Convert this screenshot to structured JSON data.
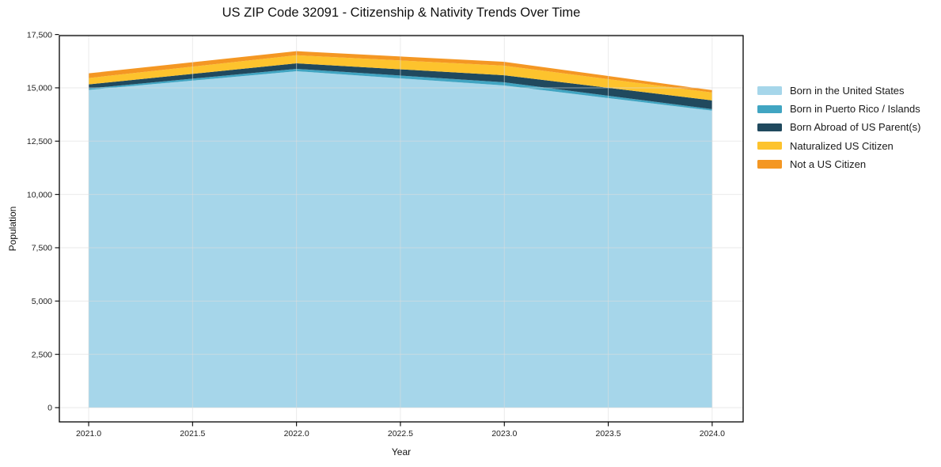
{
  "chart_data": {
    "type": "area",
    "stacked": true,
    "title": "US ZIP Code 32091 - Citizenship & Nativity Trends Over Time",
    "xlabel": "Year",
    "ylabel": "Population",
    "x": [
      2021,
      2022,
      2023,
      2024
    ],
    "series": [
      {
        "name": "Born in the United States",
        "values": [
          14900,
          15780,
          15110,
          13930
        ],
        "color": "#a6d6ea"
      },
      {
        "name": "Born in Puerto Rico / Islands",
        "values": [
          70,
          110,
          150,
          70
        ],
        "color": "#41a5c2"
      },
      {
        "name": "Born Abroad of US Parent(s)",
        "values": [
          190,
          260,
          330,
          410
        ],
        "color": "#20495e"
      },
      {
        "name": "Naturalized US Citizen",
        "values": [
          300,
          380,
          450,
          370
        ],
        "color": "#fdc32d"
      },
      {
        "name": "Not a US Citizen",
        "values": [
          220,
          190,
          180,
          110
        ],
        "color": "#f49723"
      }
    ],
    "totals": [
      15680,
      16720,
      16220,
      14890
    ],
    "xticks": [
      2021.0,
      2021.5,
      2022.0,
      2022.5,
      2023.0,
      2023.5,
      2024.0
    ],
    "xtick_labels": [
      "2021.0",
      "2021.5",
      "2022.0",
      "2022.5",
      "2023.0",
      "2023.5",
      "2024.0"
    ],
    "yticks": [
      0,
      2500,
      5000,
      7500,
      10000,
      12500,
      15000,
      17500
    ],
    "ytick_labels": [
      "0",
      "2,500",
      "5,000",
      "7,500",
      "10,000",
      "12,500",
      "15,000",
      "17,500"
    ],
    "xlim": [
      2020.859,
      2024.149
    ],
    "ylim": [
      -668,
      17449
    ],
    "grid": true,
    "grid_color": "#dcdcdc",
    "axis_color": "#000000",
    "legend_position": "right",
    "legend_frame": false
  }
}
